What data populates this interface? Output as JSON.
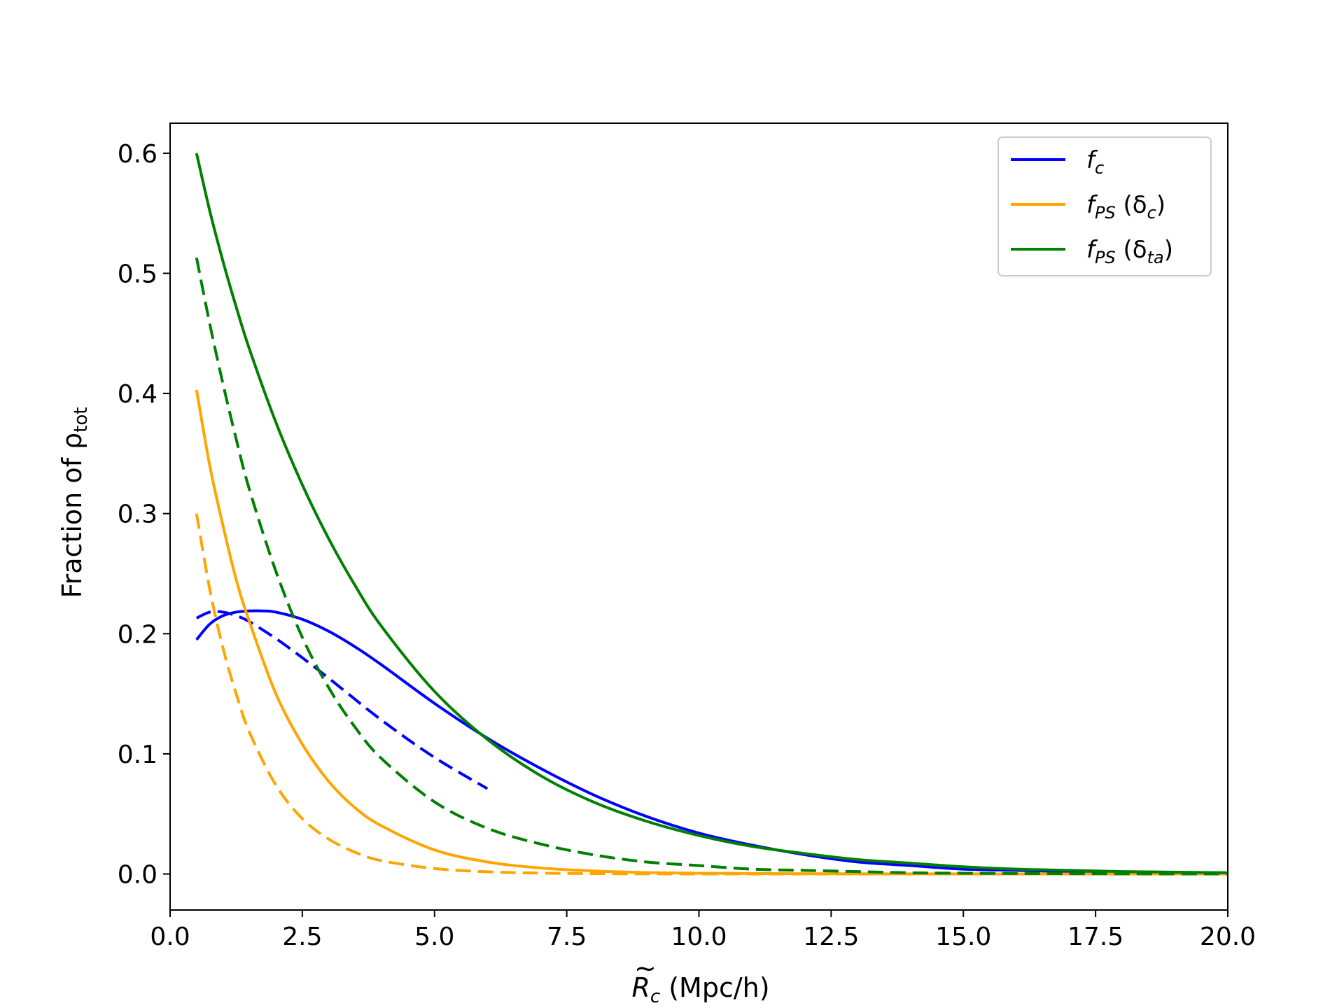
{
  "chart_data": {
    "type": "line",
    "xlabel_main": "R",
    "xlabel_sub": "c",
    "xlabel_rest": " (Mpc/h)",
    "ylabel_main": "Fraction of ρ",
    "ylabel_sub": "tot",
    "xlim": [
      0,
      20
    ],
    "ylim": [
      -0.03,
      0.625
    ],
    "xticks": [
      0,
      2.5,
      5,
      7.5,
      10,
      12.5,
      15,
      17.5,
      20
    ],
    "xtick_labels": [
      "0.0",
      "2.5",
      "5.0",
      "7.5",
      "10.0",
      "12.5",
      "15.0",
      "17.5",
      "20.0"
    ],
    "yticks": [
      0,
      0.1,
      0.2,
      0.3,
      0.4,
      0.5,
      0.6
    ],
    "ytick_labels": [
      "0.0",
      "0.1",
      "0.2",
      "0.3",
      "0.4",
      "0.5",
      "0.6"
    ],
    "grid": false,
    "legend_position": "top-right",
    "legend": [
      {
        "main": "f",
        "sub": "c",
        "rest": "",
        "color": "#0000ff"
      },
      {
        "main": "f",
        "sub": "PS",
        "rest_pre": " (δ",
        "rest_sub": "c",
        "rest_post": ")",
        "color": "#ffa500"
      },
      {
        "main": "f",
        "sub": "PS",
        "rest_pre": " (δ",
        "rest_sub": "ta",
        "rest_post": ")",
        "color": "#008000"
      }
    ],
    "series": [
      {
        "key": "fc_solid",
        "color": "#0000ff",
        "style": "solid",
        "x": [
          0.5,
          0.75,
          1.0,
          1.25,
          1.5,
          1.75,
          2.0,
          2.5,
          3.0,
          3.5,
          4.0,
          5.0,
          6.0,
          7.0,
          8.0,
          9.0,
          10.0,
          11.0,
          12.0,
          13.0,
          14.0,
          15.0,
          16.0,
          17.0,
          18.0,
          19.0,
          20.0
        ],
        "y": [
          0.195,
          0.208,
          0.215,
          0.218,
          0.219,
          0.219,
          0.218,
          0.212,
          0.202,
          0.189,
          0.174,
          0.142,
          0.113,
          0.088,
          0.066,
          0.048,
          0.034,
          0.024,
          0.016,
          0.01,
          0.007,
          0.004,
          0.003,
          0.002,
          0.001,
          0.001,
          0.0
        ]
      },
      {
        "key": "fc_dashed",
        "color": "#0000ff",
        "style": "dashed",
        "x": [
          0.5,
          0.75,
          1.0,
          1.25,
          1.5,
          2.0,
          2.5,
          3.0,
          4.0,
          5.0,
          6.0
        ],
        "y": [
          0.213,
          0.218,
          0.218,
          0.215,
          0.21,
          0.196,
          0.18,
          0.163,
          0.128,
          0.097,
          0.071
        ]
      },
      {
        "key": "fps_c_solid",
        "color": "#ffa500",
        "style": "solid",
        "x": [
          0.5,
          0.75,
          1.0,
          1.25,
          1.5,
          2.0,
          2.5,
          3.0,
          3.5,
          4.0,
          5.0,
          6.0,
          7.0,
          8.0,
          9.0,
          10.0,
          12.0,
          14.0,
          17.0,
          20.0
        ],
        "y": [
          0.403,
          0.34,
          0.29,
          0.245,
          0.21,
          0.15,
          0.108,
          0.077,
          0.055,
          0.04,
          0.02,
          0.01,
          0.005,
          0.0025,
          0.0012,
          0.0006,
          0.0002,
          0.0001,
          0.0,
          0.0
        ]
      },
      {
        "key": "fps_c_dashed",
        "color": "#ffa500",
        "style": "dashed",
        "x": [
          0.5,
          0.75,
          1.0,
          1.25,
          1.5,
          2.0,
          2.5,
          3.0,
          3.5,
          4.0,
          5.0,
          6.0,
          7.0,
          8.0,
          10.0,
          12.0,
          15.0,
          20.0
        ],
        "y": [
          0.3,
          0.237,
          0.188,
          0.15,
          0.118,
          0.074,
          0.046,
          0.029,
          0.018,
          0.011,
          0.0045,
          0.0018,
          0.0007,
          0.0003,
          0.0,
          0.0,
          0.0,
          0.0
        ]
      },
      {
        "key": "fps_ta_solid",
        "color": "#008000",
        "style": "solid",
        "x": [
          0.5,
          0.75,
          1.0,
          1.25,
          1.5,
          2.0,
          2.5,
          3.0,
          3.5,
          4.0,
          5.0,
          6.0,
          7.0,
          8.0,
          9.0,
          10.0,
          11.0,
          12.0,
          13.0,
          14.0,
          15.0,
          16.0,
          17.0,
          18.0,
          19.0,
          20.0
        ],
        "y": [
          0.6,
          0.552,
          0.51,
          0.472,
          0.437,
          0.376,
          0.324,
          0.279,
          0.24,
          0.206,
          0.152,
          0.112,
          0.082,
          0.06,
          0.044,
          0.032,
          0.023,
          0.017,
          0.012,
          0.009,
          0.006,
          0.004,
          0.003,
          0.002,
          0.0015,
          0.001
        ]
      },
      {
        "key": "fps_ta_dashed",
        "color": "#008000",
        "style": "dashed",
        "x": [
          0.5,
          0.75,
          1.0,
          1.25,
          1.5,
          2.0,
          2.5,
          3.0,
          3.5,
          4.0,
          5.0,
          6.0,
          7.0,
          8.0,
          9.0,
          10.0,
          11.0,
          12.0,
          13.0,
          14.0,
          15.0,
          16.0,
          17.0,
          18.0,
          19.0,
          20.0
        ],
        "y": [
          0.513,
          0.458,
          0.408,
          0.362,
          0.32,
          0.252,
          0.197,
          0.155,
          0.122,
          0.096,
          0.06,
          0.038,
          0.025,
          0.016,
          0.01,
          0.007,
          0.004,
          0.003,
          0.002,
          0.001,
          0.0006,
          0.0004,
          0.0002,
          0.0001,
          0.0,
          0.0
        ]
      }
    ]
  }
}
